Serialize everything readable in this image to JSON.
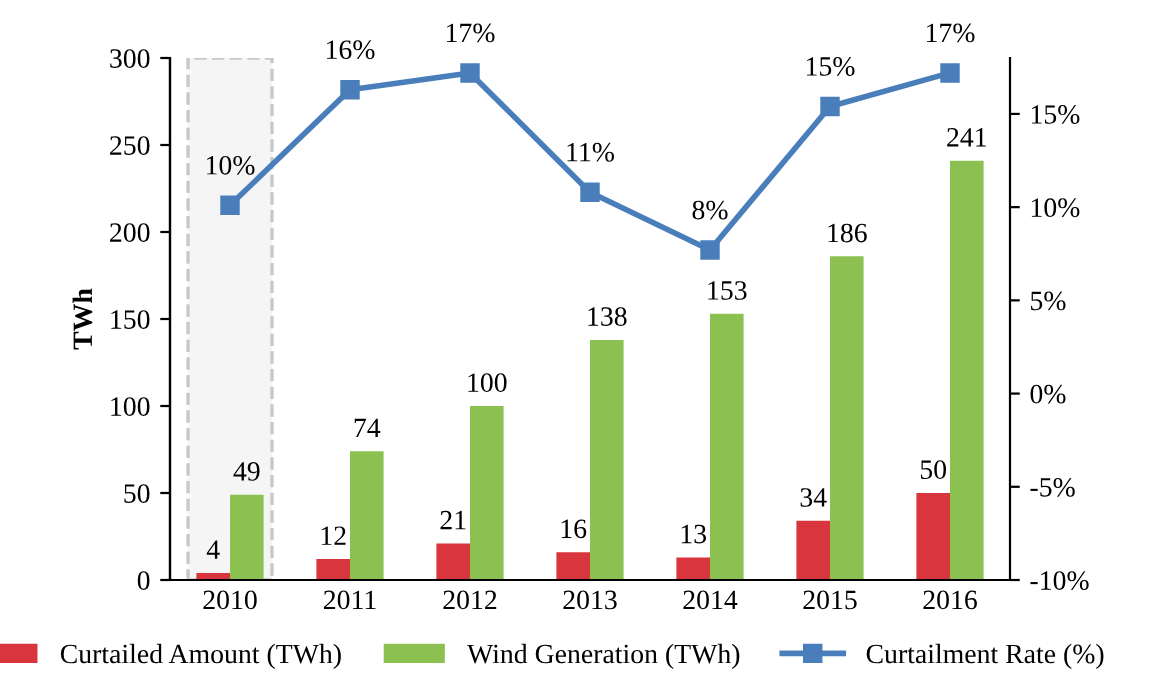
{
  "chart_data": {
    "type": "bar",
    "categories": [
      "2010",
      "2011",
      "2012",
      "2013",
      "2014",
      "2015",
      "2016"
    ],
    "ylabel": "TWh",
    "ylim": [
      0,
      300
    ],
    "yticks": [
      0,
      50,
      100,
      150,
      200,
      250,
      300
    ],
    "y2lim": [
      -10,
      18
    ],
    "y2ticks": [
      {
        "value": -10,
        "label": "-10%"
      },
      {
        "value": -5,
        "label": "-5%"
      },
      {
        "value": 0,
        "label": "0%"
      },
      {
        "value": 5,
        "label": "5%"
      },
      {
        "value": 10,
        "label": "10%"
      },
      {
        "value": 15,
        "label": "15%"
      }
    ],
    "series": [
      {
        "name": "Curtailed Amount (TWh)",
        "color": "#d9353f",
        "values": [
          4,
          12,
          21,
          16,
          13,
          34,
          50
        ],
        "value_labels": [
          "4",
          "12",
          "21",
          "16",
          "13",
          "34",
          "50"
        ]
      },
      {
        "name": "Wind Generation (TWh)",
        "color": "#8cc152",
        "values": [
          49,
          74,
          100,
          138,
          153,
          186,
          241
        ],
        "value_labels": [
          "49",
          "74",
          "100",
          "138",
          "153",
          "186",
          "241"
        ]
      },
      {
        "name": "Curtailment Rate (%)",
        "type": "line",
        "axis": "y2",
        "color": "#4a7ebb",
        "marker": "square",
        "values": [
          10.1,
          16.3,
          17.2,
          10.8,
          7.7,
          15.4,
          17.2
        ],
        "value_labels": [
          "10%",
          "16%",
          "17%",
          "11%",
          "8%",
          "15%",
          "17%"
        ]
      }
    ],
    "bands": [
      {
        "axis": "x",
        "from": "2010",
        "to": "2010",
        "color": "#c8c8c8"
      }
    ],
    "grid": false,
    "legend": "bottom"
  }
}
